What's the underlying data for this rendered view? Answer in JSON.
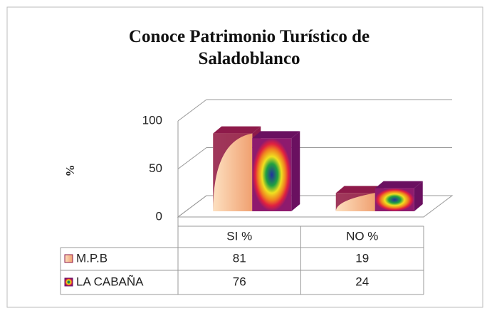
{
  "chart_data": {
    "type": "bar3d",
    "title": "Conoce Patrimonio  Turístico de Saladoblanco",
    "y_label": "%",
    "categories": [
      "SI %",
      "NO %"
    ],
    "series": [
      {
        "name": "M.P.B",
        "color": "#f4b58a",
        "values": [
          81,
          19
        ]
      },
      {
        "name": "LA CABAÑA",
        "color": "#8e1a6e",
        "values": [
          76,
          24
        ]
      }
    ],
    "ylim": [
      0,
      100
    ],
    "yticks": [
      0,
      50,
      100
    ],
    "grid": true
  }
}
